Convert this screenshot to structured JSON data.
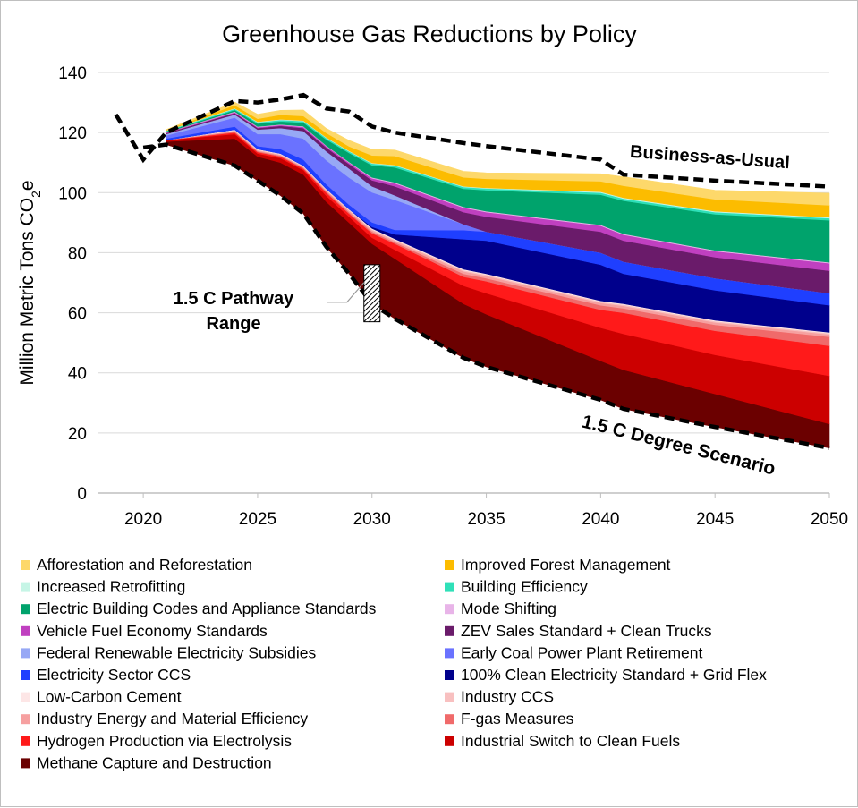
{
  "chart_data": {
    "type": "area",
    "title": "Greenhouse Gas Reductions by Policy",
    "ylabel": "Million Metric Tons CO",
    "ylabel_subscript": "2",
    "ylabel_suffix": "e",
    "xlabel": "",
    "xlim": [
      2018,
      2050
    ],
    "ylim": [
      0,
      140
    ],
    "y_ticks": [
      0,
      20,
      40,
      60,
      80,
      100,
      120,
      140
    ],
    "x_ticks": [
      2020,
      2025,
      2030,
      2035,
      2040,
      2045,
      2050
    ],
    "grid": "horizontal",
    "legend_position": "bottom",
    "annotations": {
      "bau": "Business-as-Usual",
      "scenario": "1.5 C Degree Scenario",
      "pathway_line1": "1.5 C Pathway",
      "pathway_line2": "Range"
    },
    "pathway_range": {
      "year": 2030,
      "low": 57,
      "high": 76
    },
    "x": [
      2021,
      2024,
      2025,
      2026,
      2027,
      2028,
      2029,
      2030,
      2031,
      2034,
      2035,
      2040,
      2041,
      2045,
      2050
    ],
    "bau_line": {
      "x": [
        2018.8,
        2020,
        2021,
        2024,
        2025,
        2026,
        2027,
        2028,
        2029,
        2030,
        2031,
        2034,
        2035,
        2040,
        2041,
        2045,
        2050
      ],
      "y": [
        126,
        111,
        120,
        130.5,
        130,
        131,
        132.5,
        128,
        127,
        122,
        120,
        116.5,
        115.5,
        111,
        106,
        104,
        102
      ]
    },
    "scenario_line": {
      "x": [
        2020,
        2021,
        2024,
        2025,
        2026,
        2027,
        2028,
        2029,
        2030,
        2031,
        2034,
        2035,
        2040,
        2041,
        2045,
        2050
      ],
      "y": [
        115,
        116,
        109,
        104,
        99,
        93,
        82,
        73,
        63,
        58,
        45,
        42,
        31,
        28,
        22,
        15
      ]
    },
    "base_values": [
      116,
      109,
      104,
      99,
      93,
      82,
      73,
      63,
      58,
      45,
      42,
      31,
      28,
      22,
      15
    ],
    "series": [
      {
        "name": "Methane Capture and Destruction",
        "color": "#6b0000",
        "values": [
          1,
          9,
          8,
          11,
          13,
          15,
          17,
          20,
          20,
          18,
          17.5,
          13,
          13,
          11,
          8
        ]
      },
      {
        "name": "Industrial Switch to Clean Fuels",
        "color": "#cc0000",
        "values": [
          0.5,
          1.5,
          1,
          1.5,
          1.5,
          2,
          2,
          2,
          3,
          6,
          7,
          11,
          12,
          13,
          16
        ]
      },
      {
        "name": "Hydrogen Production via Electrolysis",
        "color": "#ff1a1a",
        "values": [
          0,
          0.5,
          0.5,
          0.5,
          0.5,
          1,
          1,
          1.5,
          2,
          3,
          4,
          6,
          7,
          8,
          10
        ]
      },
      {
        "name": "F-gas Measures",
        "color": "#f06a6a",
        "values": [
          0,
          0.3,
          0.3,
          0.3,
          0.3,
          0.5,
          0.5,
          0.5,
          0.5,
          1,
          1,
          1.5,
          1.5,
          2,
          3
        ]
      },
      {
        "name": "Industry Energy and Material Efficiency",
        "color": "#f6a0a0",
        "values": [
          0,
          0.3,
          0.3,
          0.3,
          0.3,
          0.3,
          0.5,
          0.5,
          0.5,
          0.8,
          0.8,
          0.8,
          0.8,
          0.8,
          0.8
        ]
      },
      {
        "name": "Industry CCS",
        "color": "#f8c0c0",
        "values": [
          0,
          0.2,
          0.2,
          0.2,
          0.2,
          0.3,
          0.3,
          0.3,
          0.3,
          0.4,
          0.4,
          0.4,
          0.4,
          0.4,
          0.4
        ]
      },
      {
        "name": "Low-Carbon Cement",
        "color": "#fde6e6",
        "values": [
          0,
          0.2,
          0.2,
          0.2,
          0.2,
          0.2,
          0.2,
          0.3,
          0.3,
          0.3,
          0.3,
          0.3,
          0.3,
          0.3,
          0.3
        ]
      },
      {
        "name": "100% Clean Electricity Standard + Grid Flex",
        "color": "#00008c",
        "values": [
          0,
          0,
          0,
          0,
          0,
          0,
          0,
          0.5,
          1.5,
          10,
          11,
          12,
          10,
          10,
          9
        ]
      },
      {
        "name": "Electricity Sector CCS",
        "color": "#1f3fff",
        "values": [
          0.5,
          1,
          1,
          1.5,
          2,
          1.5,
          1.5,
          1.5,
          1.5,
          3,
          3,
          4,
          4,
          4,
          4
        ]
      },
      {
        "name": "Early Coal Power Plant Retirement",
        "color": "#6a72ff",
        "values": [
          1,
          3,
          4,
          5,
          7,
          8,
          9,
          10,
          10,
          2,
          0,
          0,
          0,
          0,
          0
        ]
      },
      {
        "name": "Federal Renewable Electricity Subsidies",
        "color": "#97a8f5",
        "values": [
          0.5,
          1,
          1.5,
          2,
          2.5,
          3,
          3,
          2,
          1.5,
          0,
          0,
          0,
          0,
          0,
          0
        ]
      },
      {
        "name": "ZEV Sales Standard + Clean Trucks",
        "color": "#6a1b6a",
        "values": [
          0.3,
          0.5,
          0.5,
          0.7,
          1,
          1.2,
          1.5,
          2,
          3,
          4,
          5,
          7,
          7,
          7,
          7.5
        ]
      },
      {
        "name": "Vehicle Fuel Economy Standards",
        "color": "#c040c0",
        "values": [
          0.2,
          0.3,
          0.3,
          0.3,
          0.4,
          0.5,
          0.5,
          0.7,
          1,
          1.5,
          1.5,
          2,
          2,
          2,
          2.5
        ]
      },
      {
        "name": "Mode Shifting",
        "color": "#e8b4e8",
        "values": [
          0.1,
          0.2,
          0.2,
          0.2,
          0.2,
          0.2,
          0.2,
          0.3,
          0.3,
          0.3,
          0.3,
          0.3,
          0.3,
          0.3,
          0.3
        ]
      },
      {
        "name": "Electric Building Codes and Appliance Standards",
        "color": "#00a36c",
        "values": [
          0.3,
          0.5,
          1,
          1,
          1.2,
          2,
          3,
          4,
          5,
          6,
          7,
          10,
          11,
          12,
          14
        ]
      },
      {
        "name": "Building Efficiency",
        "color": "#2fe0b8",
        "values": [
          0.2,
          0.4,
          0.4,
          0.5,
          0.5,
          0.5,
          0.5,
          0.6,
          0.6,
          0.6,
          0.6,
          0.7,
          0.7,
          0.7,
          0.7
        ]
      },
      {
        "name": "Increased Retrofitting",
        "color": "#c6f5e6",
        "values": [
          0.1,
          0.2,
          0.2,
          0.2,
          0.2,
          0.2,
          0.2,
          0.2,
          0.2,
          0.2,
          0.2,
          0.3,
          0.3,
          0.3,
          0.3
        ]
      },
      {
        "name": "Improved Forest Management",
        "color": "#fcbc00",
        "values": [
          0.2,
          1,
          1,
          1.5,
          1.5,
          1.5,
          1.5,
          2.5,
          3,
          3,
          3,
          3.5,
          4,
          4,
          4
        ]
      },
      {
        "name": "Afforestation and Reforestation",
        "color": "#fdd86a",
        "values": [
          0.1,
          1,
          1.5,
          1.5,
          2,
          1.5,
          2,
          2,
          2,
          2,
          2,
          2.5,
          3,
          3,
          4
        ]
      }
    ],
    "legend_order": [
      "Afforestation and Reforestation",
      "Improved Forest Management",
      "Increased Retrofitting",
      "Building Efficiency",
      "Electric Building Codes and Appliance Standards",
      "Mode Shifting",
      "Vehicle Fuel Economy Standards",
      "ZEV Sales Standard + Clean Trucks",
      "Federal Renewable Electricity Subsidies",
      "Early Coal Power Plant Retirement",
      "Electricity Sector CCS",
      "100% Clean Electricity Standard + Grid Flex",
      "Low-Carbon Cement",
      "Industry CCS",
      "Industry Energy and Material Efficiency",
      "F-gas Measures",
      "Hydrogen Production via Electrolysis",
      "Industrial Switch to Clean Fuels",
      "Methane Capture and Destruction"
    ]
  }
}
